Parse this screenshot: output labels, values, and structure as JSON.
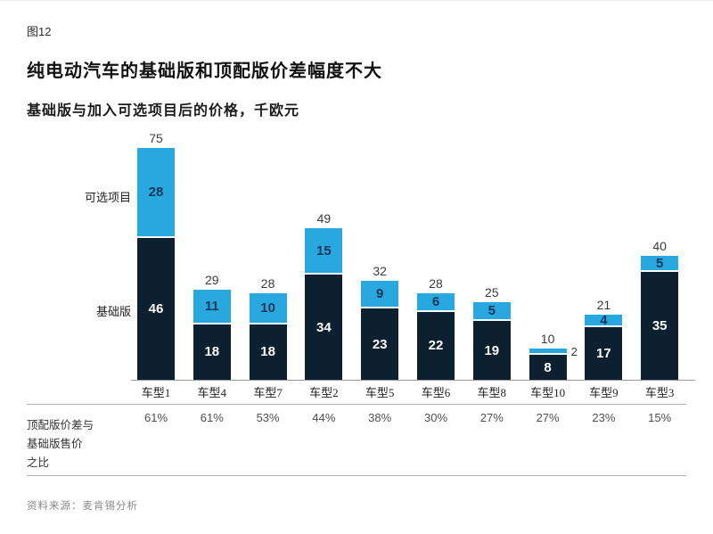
{
  "figure_label": "图12",
  "title": "纯电动汽车的基础版和顶配版价差幅度不大",
  "subtitle": "基础版与加入可选项目后的价格，千欧元",
  "legend": {
    "optional": "可选项目",
    "base": "基础版"
  },
  "chart_data": {
    "type": "bar",
    "stacked": true,
    "categories": [
      "车型1",
      "车型4",
      "车型7",
      "车型2",
      "车型5",
      "车型6",
      "车型8",
      "车型10",
      "车型9",
      "车型3"
    ],
    "series": [
      {
        "name": "基础版",
        "color": "#0c2030",
        "values": [
          46,
          18,
          18,
          34,
          23,
          22,
          19,
          8,
          17,
          35
        ]
      },
      {
        "name": "可选项目",
        "color": "#29a8e0",
        "values": [
          28,
          11,
          10,
          15,
          9,
          6,
          5,
          2,
          4,
          5
        ]
      }
    ],
    "totals": [
      75,
      29,
      28,
      49,
      32,
      28,
      25,
      10,
      21,
      40
    ],
    "unit": "千欧元",
    "ylim": [
      0,
      75
    ],
    "grid": false,
    "legend_position": "left-of-first-bar",
    "ratio_row": {
      "label_lines": [
        "顶配版价差与",
        "基础版售价",
        "之比"
      ],
      "values": [
        "61%",
        "61%",
        "53%",
        "44%",
        "38%",
        "30%",
        "27%",
        "27%",
        "23%",
        "15%"
      ]
    }
  },
  "colors": {
    "base_bar": "#0c2030",
    "optional_bar": "#29a8e0",
    "base_value_text": "#ffffff",
    "optional_value_text": "#16365c",
    "total_value_text": "#3c3c3c"
  },
  "source": "资料来源：麦肯锡分析"
}
